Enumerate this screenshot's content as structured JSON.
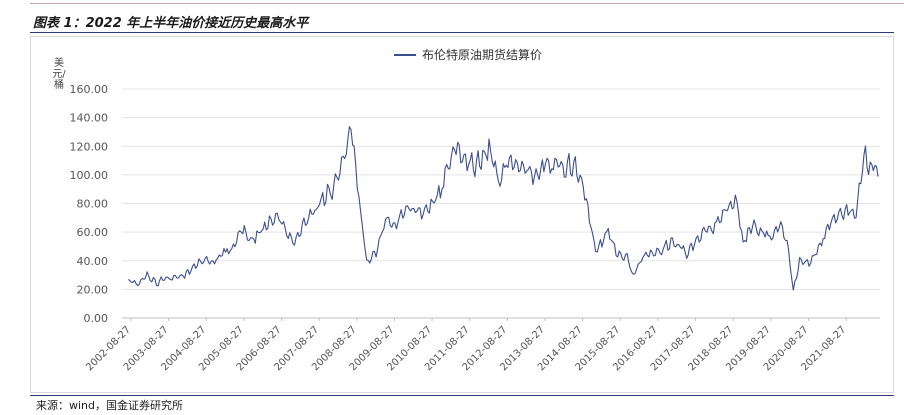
{
  "figure": {
    "title": "图表 1：2022 年上半年油价接近历史最高水平",
    "source": "来源：wind，国金证券研究所"
  },
  "chart_data": {
    "type": "line",
    "title": "",
    "ylabel": "美元/桶",
    "xlabel": "",
    "ylim": [
      0,
      160
    ],
    "yticks": [
      "0.00",
      "20.00",
      "40.00",
      "60.00",
      "80.00",
      "100.00",
      "120.00",
      "140.00",
      "160.00"
    ],
    "xticks": [
      "2002-08-27",
      "2003-08-27",
      "2004-08-27",
      "2005-08-27",
      "2006-08-27",
      "2007-08-27",
      "2008-08-27",
      "2009-08-27",
      "2010-08-27",
      "2011-08-27",
      "2012-08-27",
      "2013-08-27",
      "2014-08-27",
      "2015-08-27",
      "2016-08-27",
      "2017-08-27",
      "2018-08-27",
      "2019-08-27",
      "2020-08-27",
      "2021-08-27"
    ],
    "grid": true,
    "legend_position": "top-center",
    "color": "#3b4f8c",
    "series": [
      {
        "name": "布伦特原油期货结算价",
        "x": [
          "2002-08",
          "2002-11",
          "2003-02",
          "2003-05",
          "2003-08",
          "2003-11",
          "2004-02",
          "2004-05",
          "2004-08",
          "2004-11",
          "2005-02",
          "2005-05",
          "2005-08",
          "2005-11",
          "2006-02",
          "2006-05",
          "2006-08",
          "2006-11",
          "2007-01",
          "2007-04",
          "2007-07",
          "2007-10",
          "2008-01",
          "2008-04",
          "2008-07",
          "2008-09",
          "2008-12",
          "2009-03",
          "2009-06",
          "2009-09",
          "2009-12",
          "2010-03",
          "2010-06",
          "2010-09",
          "2010-12",
          "2011-02",
          "2011-04",
          "2011-07",
          "2011-10",
          "2012-01",
          "2012-03",
          "2012-06",
          "2012-09",
          "2012-12",
          "2013-03",
          "2013-06",
          "2013-09",
          "2013-12",
          "2014-03",
          "2014-06",
          "2014-09",
          "2014-12",
          "2015-01",
          "2015-05",
          "2015-08",
          "2015-11",
          "2016-01",
          "2016-04",
          "2016-07",
          "2016-10",
          "2017-01",
          "2017-04",
          "2017-06",
          "2017-09",
          "2017-12",
          "2018-03",
          "2018-06",
          "2018-10",
          "2018-12",
          "2019-03",
          "2019-06",
          "2019-09",
          "2019-12",
          "2020-02",
          "2020-04",
          "2020-06",
          "2020-09",
          "2020-12",
          "2021-03",
          "2021-06",
          "2021-09",
          "2021-12",
          "2022-03",
          "2022-04",
          "2022-06",
          "2022-07"
        ],
        "values": [
          27,
          25,
          31,
          26,
          29,
          30,
          31,
          37,
          43,
          40,
          47,
          50,
          66,
          56,
          62,
          70,
          72,
          60,
          55,
          68,
          76,
          88,
          92,
          110,
          138,
          98,
          40,
          48,
          70,
          68,
          78,
          79,
          76,
          83,
          94,
          112,
          122,
          116,
          110,
          118,
          124,
          98,
          115,
          109,
          108,
          102,
          112,
          110,
          108,
          112,
          96,
          60,
          48,
          63,
          45,
          44,
          30,
          45,
          46,
          50,
          55,
          52,
          46,
          56,
          64,
          66,
          76,
          85,
          55,
          68,
          62,
          58,
          68,
          55,
          20,
          42,
          40,
          50,
          66,
          75,
          78,
          76,
          122,
          105,
          115,
          100
        ]
      }
    ]
  }
}
